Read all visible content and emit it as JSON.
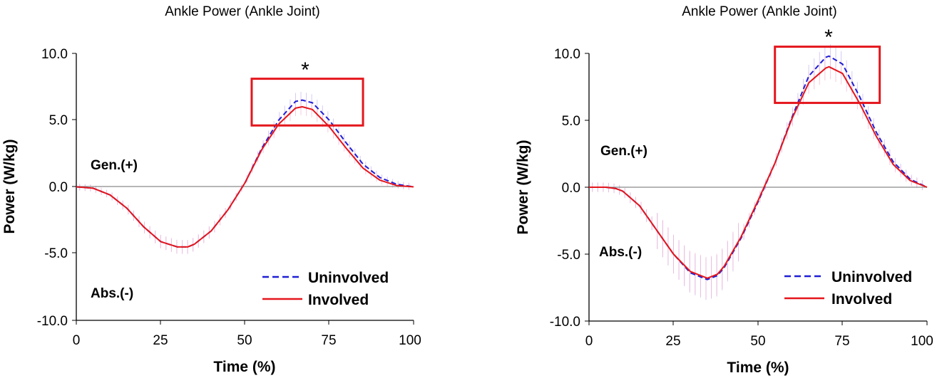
{
  "chart_data": [
    {
      "type": "line",
      "title": "Ankle Power (Ankle Joint)",
      "xlabel": "Time (%)",
      "ylabel": "Power (W/kg)",
      "xlim": [
        0,
        100
      ],
      "ylim": [
        -10,
        10
      ],
      "xticks": [
        "0",
        "25",
        "50",
        "75",
        "100"
      ],
      "yticks": [
        "10.0",
        "5.0",
        "0.0",
        "-5.0",
        "-10.0"
      ],
      "annotations": {
        "generation": "Gen.(+)",
        "absorption": "Abs.(-)",
        "significance": "*"
      },
      "highlight_box": {
        "x": [
          52,
          85
        ],
        "y": [
          4.6,
          8.1
        ]
      },
      "series": [
        {
          "name": "Uninvolved",
          "style": "dashed",
          "color": "#1f1fd6",
          "x": [
            0,
            5,
            10,
            15,
            20,
            25,
            30,
            33,
            35,
            40,
            45,
            50,
            55,
            60,
            65,
            67,
            70,
            75,
            80,
            85,
            90,
            95,
            100
          ],
          "y": [
            0,
            -0.1,
            -0.6,
            -1.6,
            -3.0,
            -4.1,
            -4.5,
            -4.5,
            -4.3,
            -3.3,
            -1.7,
            0.3,
            2.9,
            5.0,
            6.4,
            6.5,
            6.3,
            5.0,
            3.3,
            1.7,
            0.7,
            0.2,
            0
          ]
        },
        {
          "name": "Involved",
          "style": "solid",
          "color": "#e4161c",
          "x": [
            0,
            5,
            10,
            15,
            20,
            25,
            30,
            33,
            35,
            40,
            45,
            50,
            55,
            60,
            65,
            67,
            70,
            75,
            80,
            85,
            90,
            95,
            100
          ],
          "y": [
            0,
            -0.1,
            -0.6,
            -1.6,
            -3.0,
            -4.1,
            -4.5,
            -4.5,
            -4.3,
            -3.3,
            -1.7,
            0.3,
            2.8,
            4.7,
            5.9,
            6.0,
            5.8,
            4.5,
            2.9,
            1.4,
            0.5,
            0.1,
            0
          ]
        }
      ]
    },
    {
      "type": "line",
      "title": "Ankle Power (Ankle Joint)",
      "xlabel": "Time (%)",
      "ylabel": "Power (W/kg)",
      "xlim": [
        0,
        100
      ],
      "ylim": [
        -10,
        10
      ],
      "xticks": [
        "0",
        "25",
        "50",
        "75",
        "100"
      ],
      "yticks": [
        "10.0",
        "5.0",
        "0.0",
        "-5.0",
        "-10.0"
      ],
      "annotations": {
        "generation": "Gen.(+)",
        "absorption": "Abs.(-)",
        "significance": "*"
      },
      "highlight_box": {
        "x": [
          55,
          86
        ],
        "y": [
          6.3,
          10.5
        ]
      },
      "series": [
        {
          "name": "Uninvolved",
          "style": "dashed",
          "color": "#1f1fd6",
          "x": [
            0,
            5,
            8,
            10,
            15,
            20,
            25,
            30,
            35,
            38,
            40,
            45,
            50,
            55,
            60,
            65,
            70,
            71,
            75,
            80,
            85,
            90,
            95,
            100
          ],
          "y": [
            0,
            0,
            -0.1,
            -0.3,
            -1.4,
            -3.2,
            -5.0,
            -6.4,
            -6.9,
            -6.6,
            -6.0,
            -3.8,
            -1.1,
            1.8,
            5.2,
            8.3,
            9.7,
            9.8,
            9.2,
            6.8,
            4.1,
            1.9,
            0.6,
            0
          ]
        },
        {
          "name": "Involved",
          "style": "solid",
          "color": "#e4161c",
          "x": [
            0,
            5,
            8,
            10,
            15,
            20,
            25,
            30,
            35,
            38,
            40,
            45,
            50,
            55,
            60,
            65,
            70,
            71,
            75,
            80,
            85,
            90,
            95,
            100
          ],
          "y": [
            0,
            0,
            -0.1,
            -0.3,
            -1.4,
            -3.2,
            -5.0,
            -6.3,
            -6.8,
            -6.5,
            -5.9,
            -3.7,
            -1.0,
            1.8,
            5.1,
            7.8,
            8.9,
            9.0,
            8.5,
            6.3,
            3.8,
            1.7,
            0.5,
            0
          ]
        }
      ]
    }
  ]
}
